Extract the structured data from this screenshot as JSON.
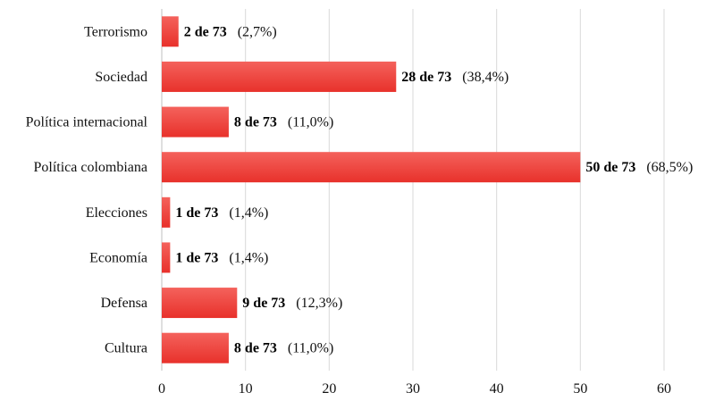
{
  "chart_data": {
    "type": "bar",
    "orientation": "horizontal",
    "categories": [
      "Terrorismo",
      "Sociedad",
      "Política internacional",
      "Política colombiana",
      "Elecciones",
      "Economía",
      "Defensa",
      "Cultura"
    ],
    "values": [
      2,
      28,
      8,
      50,
      1,
      1,
      9,
      8
    ],
    "data_labels": [
      "2 de 73",
      "28 de 73",
      "8 de 73",
      "50 de 73",
      "1 de 73",
      "1 de 73",
      "9 de 73",
      "8 de 73"
    ],
    "percent_labels": [
      "(2,7%)",
      "(38,4%)",
      "(11,0%)",
      "(68,5%)",
      "(1,4%)",
      "(1,4%)",
      "(12,3%)",
      "(11,0%)"
    ],
    "xlim": [
      0,
      60
    ],
    "xticks": [
      0,
      10,
      20,
      30,
      40,
      50,
      60
    ],
    "grid": true,
    "colors": {
      "bar": "#e8312b",
      "bar_light": "#f4625c",
      "grid": "#d9d9d9"
    }
  }
}
